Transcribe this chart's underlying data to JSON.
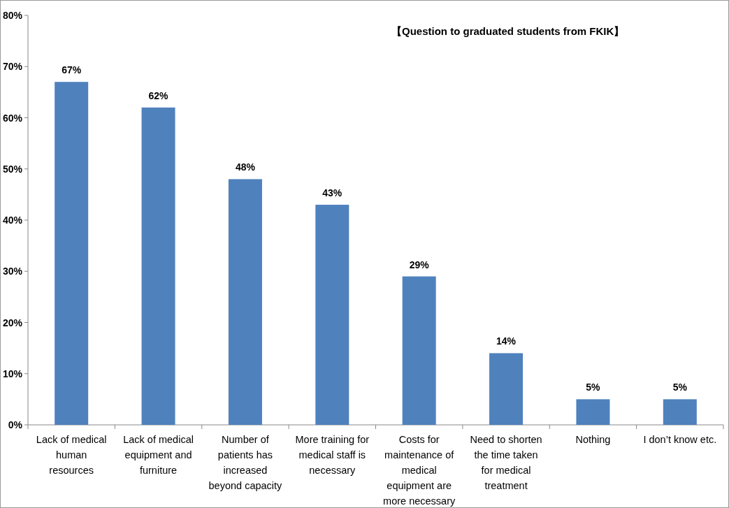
{
  "chart_data": {
    "type": "bar",
    "categories": [
      "Lack of medical human resources",
      "Lack of medical equipment and furniture",
      "Number of patients has increased beyond capacity",
      "More training for medical staff is necessary",
      "Costs for maintenance of medical equipment are more necessary",
      "Need to shorten the time taken for medical treatment",
      "Nothing",
      "I don’t know etc."
    ],
    "values": [
      67,
      62,
      48,
      43,
      29,
      14,
      5,
      5
    ],
    "value_labels": [
      "67%",
      "62%",
      "48%",
      "43%",
      "29%",
      "14%",
      "5%",
      "5%"
    ],
    "color": "#4f81bd",
    "ylim": [
      0,
      80
    ],
    "yticks": [
      {
        "value": 0,
        "label": "0%"
      },
      {
        "value": 10,
        "label": "10%"
      },
      {
        "value": 20,
        "label": "20%"
      },
      {
        "value": 30,
        "label": "30%"
      },
      {
        "value": 40,
        "label": "40%"
      },
      {
        "value": 50,
        "label": "50%"
      },
      {
        "value": 60,
        "label": "60%"
      },
      {
        "value": 70,
        "label": "70%"
      },
      {
        "value": 80,
        "label": "80%"
      }
    ],
    "annotations": [
      "【Question to graduated students from FKIK】"
    ],
    "grid": false
  }
}
